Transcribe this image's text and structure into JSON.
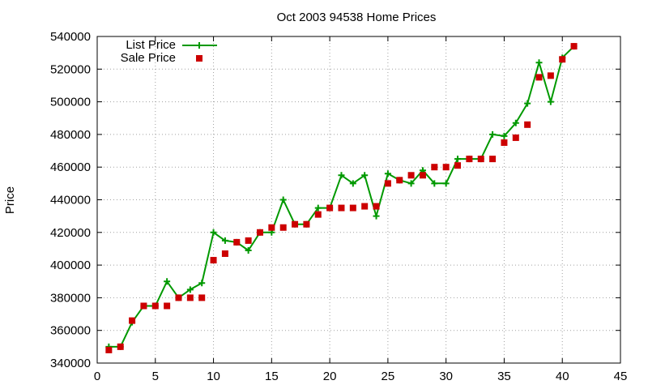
{
  "chart_data": {
    "type": "line",
    "title": "Oct 2003 94538 Home Prices",
    "xlabel": "",
    "ylabel": "Price",
    "xlim": [
      0,
      45
    ],
    "ylim": [
      340000,
      540000
    ],
    "x_ticks": [
      "0",
      "5",
      "10",
      "15",
      "20",
      "25",
      "30",
      "35",
      "40",
      "45"
    ],
    "y_ticks": [
      "340000",
      "360000",
      "380000",
      "400000",
      "420000",
      "440000",
      "460000",
      "480000",
      "500000",
      "520000",
      "540000"
    ],
    "grid": true,
    "legend_position": "top-left",
    "series": [
      {
        "name": "List Price",
        "style": "line-with-plus-markers",
        "color": "#009900",
        "x": [
          1,
          2,
          3,
          4,
          5,
          6,
          7,
          8,
          9,
          10,
          11,
          12,
          13,
          14,
          15,
          16,
          17,
          18,
          19,
          20,
          21,
          22,
          23,
          24,
          25,
          26,
          27,
          28,
          29,
          30,
          31,
          32,
          33,
          34,
          35,
          36,
          37,
          38,
          39,
          40,
          41
        ],
        "y": [
          350000,
          350000,
          365000,
          375000,
          375000,
          390000,
          380000,
          385000,
          389000,
          420000,
          415000,
          414000,
          409000,
          420000,
          420000,
          440000,
          425000,
          425000,
          435000,
          435000,
          455000,
          450000,
          455000,
          430000,
          456000,
          452000,
          450000,
          458000,
          450000,
          450000,
          465000,
          465000,
          465000,
          480000,
          479000,
          487000,
          499000,
          524000,
          500000,
          527000,
          534000
        ]
      },
      {
        "name": "Sale Price",
        "style": "square-points",
        "color": "#cc0000",
        "x": [
          1,
          2,
          3,
          4,
          5,
          6,
          7,
          8,
          9,
          10,
          11,
          12,
          13,
          14,
          15,
          16,
          17,
          18,
          19,
          20,
          21,
          22,
          23,
          24,
          25,
          26,
          27,
          28,
          29,
          30,
          31,
          32,
          33,
          34,
          35,
          36,
          37,
          38,
          39,
          40,
          41
        ],
        "y": [
          348000,
          350000,
          366000,
          375000,
          375000,
          375000,
          380000,
          380000,
          380000,
          403000,
          407000,
          414000,
          415000,
          420000,
          423000,
          423000,
          425000,
          425000,
          431000,
          435000,
          435000,
          435000,
          436000,
          436000,
          450000,
          452000,
          455000,
          455000,
          460000,
          460000,
          461000,
          465000,
          465000,
          465000,
          475000,
          478000,
          486000,
          515000,
          516000,
          526000,
          534000
        ]
      }
    ]
  }
}
